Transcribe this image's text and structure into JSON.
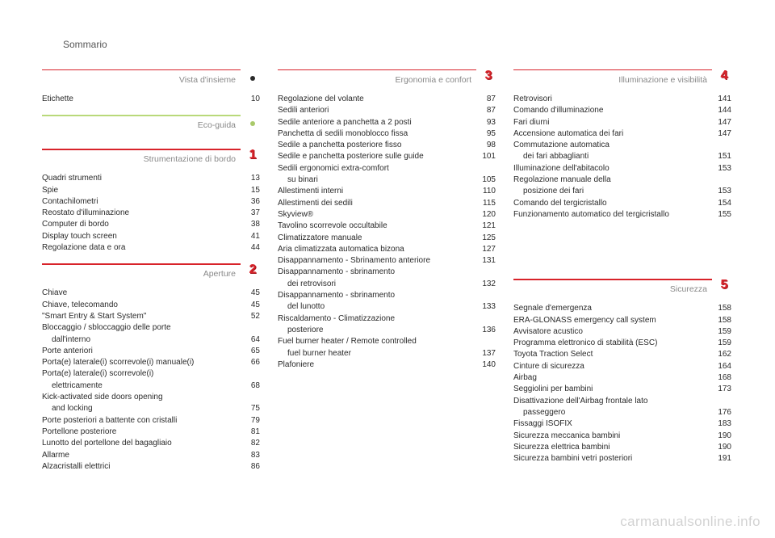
{
  "page_header": "Sommario",
  "watermark": "carmanualsonline.info",
  "columns": [
    {
      "sections": [
        {
          "title": "Vista d'insieme",
          "badge": {
            "type": "dot",
            "color": "#2a2a2a"
          },
          "rule_color": "#d8232a",
          "entries": [
            {
              "label": "Etichette",
              "page": "10"
            }
          ]
        },
        {
          "title": "Eco-guida",
          "badge": {
            "type": "dot",
            "color": "#a9c96a"
          },
          "rule_color": "#b9d97a",
          "entries": []
        },
        {
          "title": "Strumentazione di bordo",
          "badge": {
            "type": "num",
            "value": "1"
          },
          "rule_color": "#d8232a",
          "entries": [
            {
              "label": "Quadri strumenti",
              "page": "13"
            },
            {
              "label": "Spie",
              "page": "15"
            },
            {
              "label": "Contachilometri",
              "page": "36"
            },
            {
              "label": "Reostato d'illuminazione",
              "page": "37"
            },
            {
              "label": "Computer di bordo",
              "page": "38"
            },
            {
              "label": "Display touch screen",
              "page": "41"
            },
            {
              "label": "Regolazione data e ora",
              "page": "44"
            }
          ]
        },
        {
          "title": "Aperture",
          "badge": {
            "type": "num",
            "value": "2"
          },
          "rule_color": "#d8232a",
          "entries": [
            {
              "label": "Chiave",
              "page": "45"
            },
            {
              "label": "Chiave, telecomando",
              "page": "45"
            },
            {
              "label": "\"Smart Entry & Start System\"",
              "page": "52"
            },
            {
              "label": "Bloccaggio / sbloccaggio delle porte",
              "page": ""
            },
            {
              "label": "dall'interno",
              "page": "64",
              "indent": true
            },
            {
              "label": "Porte anteriori",
              "page": "65"
            },
            {
              "label": "Porta(e) laterale(i) scorrevole(i) manuale(i)",
              "page": "66"
            },
            {
              "label": "Porta(e) laterale(i) scorrevole(i)",
              "page": ""
            },
            {
              "label": "elettricamente",
              "page": "68",
              "indent": true
            },
            {
              "label": "Kick-activated side doors opening",
              "page": ""
            },
            {
              "label": "and locking",
              "page": "75",
              "indent": true
            },
            {
              "label": "Porte posteriori a battente con cristalli",
              "page": "79"
            },
            {
              "label": "Portellone posteriore",
              "page": "81"
            },
            {
              "label": "Lunotto del portellone del bagagliaio",
              "page": "82"
            },
            {
              "label": "Allarme",
              "page": "83"
            },
            {
              "label": "Alzacristalli elettrici",
              "page": "86"
            }
          ]
        }
      ]
    },
    {
      "sections": [
        {
          "title": "Ergonomia e confort",
          "badge": {
            "type": "num",
            "value": "3"
          },
          "rule_color": "#d8232a",
          "entries": [
            {
              "label": "Regolazione del volante",
              "page": "87"
            },
            {
              "label": "Sedili anteriori",
              "page": "87"
            },
            {
              "label": "Sedile anteriore a panchetta a 2 posti",
              "page": "93"
            },
            {
              "label": "Panchetta di sedili monoblocco fissa",
              "page": "95"
            },
            {
              "label": "Sedile a panchetta posteriore fisso",
              "page": "98"
            },
            {
              "label": "Sedile e panchetta posteriore sulle guide",
              "page": "101"
            },
            {
              "label": "Sedili ergonomici extra-comfort",
              "page": ""
            },
            {
              "label": "su binari",
              "page": "105",
              "indent": true
            },
            {
              "label": "Allestimenti interni",
              "page": "110"
            },
            {
              "label": "Allestimenti dei sedili",
              "page": "115"
            },
            {
              "label": "Skyview®",
              "page": "120"
            },
            {
              "label": "Tavolino scorrevole occultabile",
              "page": "121"
            },
            {
              "label": "Climatizzatore manuale",
              "page": "125"
            },
            {
              "label": "Aria climatizzata automatica bizona",
              "page": "127"
            },
            {
              "label": "Disappannamento - Sbrinamento anteriore",
              "page": "131"
            },
            {
              "label": "Disappannamento - sbrinamento",
              "page": ""
            },
            {
              "label": "dei retrovisori",
              "page": "132",
              "indent": true
            },
            {
              "label": "Disappannamento - sbrinamento",
              "page": ""
            },
            {
              "label": "del lunotto",
              "page": "133",
              "indent": true
            },
            {
              "label": "Riscaldamento - Climatizzazione",
              "page": ""
            },
            {
              "label": "posteriore",
              "page": "136",
              "indent": true
            },
            {
              "label": "Fuel burner heater / Remote controlled",
              "page": ""
            },
            {
              "label": "fuel burner heater",
              "page": "137",
              "indent": true
            },
            {
              "label": "Plafoniere",
              "page": "140"
            }
          ]
        }
      ]
    },
    {
      "sections": [
        {
          "title": "Illuminazione e visibilità",
          "badge": {
            "type": "num",
            "value": "4"
          },
          "rule_color": "#d8232a",
          "entries": [
            {
              "label": "Retrovisori",
              "page": "141"
            },
            {
              "label": "Comando d'illuminazione",
              "page": "144"
            },
            {
              "label": "Fari diurni",
              "page": "147"
            },
            {
              "label": "Accensione automatica dei fari",
              "page": "147"
            },
            {
              "label": "Commutazione automatica",
              "page": ""
            },
            {
              "label": "dei fari abbaglianti",
              "page": "151",
              "indent": true
            },
            {
              "label": "Illuminazione dell'abitacolo",
              "page": "153"
            },
            {
              "label": "Regolazione manuale della",
              "page": ""
            },
            {
              "label": "posizione dei fari",
              "page": "153",
              "indent": true
            },
            {
              "label": "Comando del tergicristallo",
              "page": "154"
            },
            {
              "label": "Funzionamento automatico del tergicristallo",
              "page": "155"
            }
          ]
        },
        {
          "title": "Sicurezza",
          "badge": {
            "type": "num",
            "value": "5"
          },
          "rule_color": "#d8232a",
          "top_gap": 60,
          "entries": [
            {
              "label": "Segnale d'emergenza",
              "page": "158"
            },
            {
              "label": "ERA-GLONASS emergency call system",
              "page": "158"
            },
            {
              "label": "Avvisatore acustico",
              "page": "159"
            },
            {
              "label": "Programma elettronico di stabilità (ESC)",
              "page": "159"
            },
            {
              "label": "Toyota Traction Select",
              "page": "162"
            },
            {
              "label": "Cinture di sicurezza",
              "page": "164"
            },
            {
              "label": "Airbag",
              "page": "168"
            },
            {
              "label": "Seggiolini per bambini",
              "page": "173"
            },
            {
              "label": "Disattivazione dell'Airbag frontale lato",
              "page": ""
            },
            {
              "label": "passeggero",
              "page": "176",
              "indent": true
            },
            {
              "label": "Fissaggi ISOFIX",
              "page": "183"
            },
            {
              "label": "Sicurezza meccanica bambini",
              "page": "190"
            },
            {
              "label": "Sicurezza elettrica bambini",
              "page": "190"
            },
            {
              "label": "Sicurezza bambini vetri posteriori",
              "page": "191"
            }
          ]
        }
      ]
    }
  ]
}
